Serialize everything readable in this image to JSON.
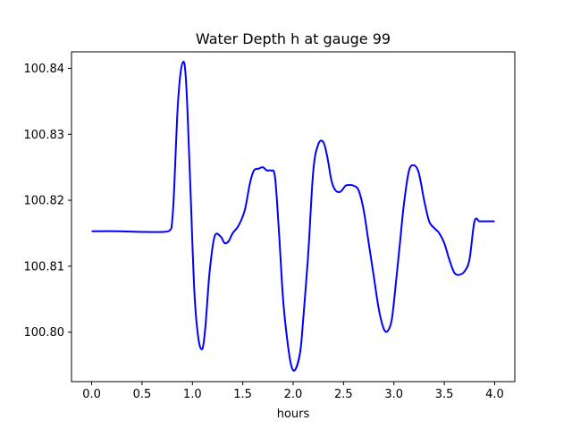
{
  "chart_data": {
    "type": "line",
    "title": "Water Depth h at gauge 99",
    "xlabel": "hours",
    "ylabel": "",
    "xlim": [
      -0.2,
      4.2
    ],
    "ylim": [
      100.7925,
      100.8425
    ],
    "grid": false,
    "xticks": [
      0.0,
      0.5,
      1.0,
      1.5,
      2.0,
      2.5,
      3.0,
      3.5,
      4.0
    ],
    "xtick_labels": [
      "0.0",
      "0.5",
      "1.0",
      "1.5",
      "2.0",
      "2.5",
      "3.0",
      "3.5",
      "4.0"
    ],
    "yticks": [
      100.8,
      100.81,
      100.82,
      100.83,
      100.84
    ],
    "ytick_labels": [
      "100.80",
      "100.81",
      "100.82",
      "100.83",
      "100.84"
    ],
    "series": [
      {
        "color": "#0000ff",
        "x": [
          0.0,
          0.25,
          0.5,
          0.7,
          0.78,
          0.8,
          0.82,
          0.85,
          0.88,
          0.91,
          0.93,
          0.95,
          0.98,
          1.02,
          1.06,
          1.1,
          1.13,
          1.17,
          1.22,
          1.28,
          1.32,
          1.36,
          1.4,
          1.46,
          1.52,
          1.57,
          1.61,
          1.66,
          1.7,
          1.74,
          1.78,
          1.82,
          1.86,
          1.9,
          1.94,
          1.98,
          2.02,
          2.07,
          2.1,
          2.15,
          2.2,
          2.25,
          2.3,
          2.34,
          2.38,
          2.42,
          2.47,
          2.52,
          2.56,
          2.6,
          2.65,
          2.7,
          2.75,
          2.8,
          2.85,
          2.9,
          2.94,
          2.98,
          3.02,
          3.06,
          3.1,
          3.15,
          3.2,
          3.24,
          3.27,
          3.3,
          3.35,
          3.4,
          3.45,
          3.5,
          3.55,
          3.6,
          3.65,
          3.7,
          3.75,
          3.8,
          3.85,
          3.9,
          3.95,
          4.0
        ],
        "y": [
          100.8153,
          100.8153,
          100.8152,
          100.8152,
          100.8155,
          100.817,
          100.822,
          100.833,
          100.839,
          100.841,
          100.8395,
          100.834,
          100.822,
          100.806,
          100.799,
          100.7975,
          100.801,
          100.809,
          100.8145,
          100.8145,
          100.8135,
          100.8138,
          100.815,
          100.8162,
          100.8185,
          100.8225,
          100.8245,
          100.8248,
          100.825,
          100.8245,
          100.8245,
          100.8235,
          100.815,
          100.805,
          100.799,
          100.795,
          100.7943,
          100.797,
          100.802,
          100.812,
          100.8245,
          100.8285,
          100.8288,
          100.8265,
          100.823,
          100.8215,
          100.8213,
          100.8222,
          100.8223,
          100.8222,
          100.8215,
          100.8185,
          100.8135,
          100.8085,
          100.8035,
          100.8005,
          100.8002,
          100.802,
          100.8075,
          100.8135,
          100.8195,
          100.8245,
          100.8253,
          100.8245,
          100.8225,
          100.82,
          100.8168,
          100.8158,
          100.815,
          100.8135,
          100.811,
          100.809,
          100.8087,
          100.8092,
          100.811,
          100.8168,
          100.8168,
          100.8168,
          100.8168,
          100.8168
        ]
      }
    ]
  }
}
